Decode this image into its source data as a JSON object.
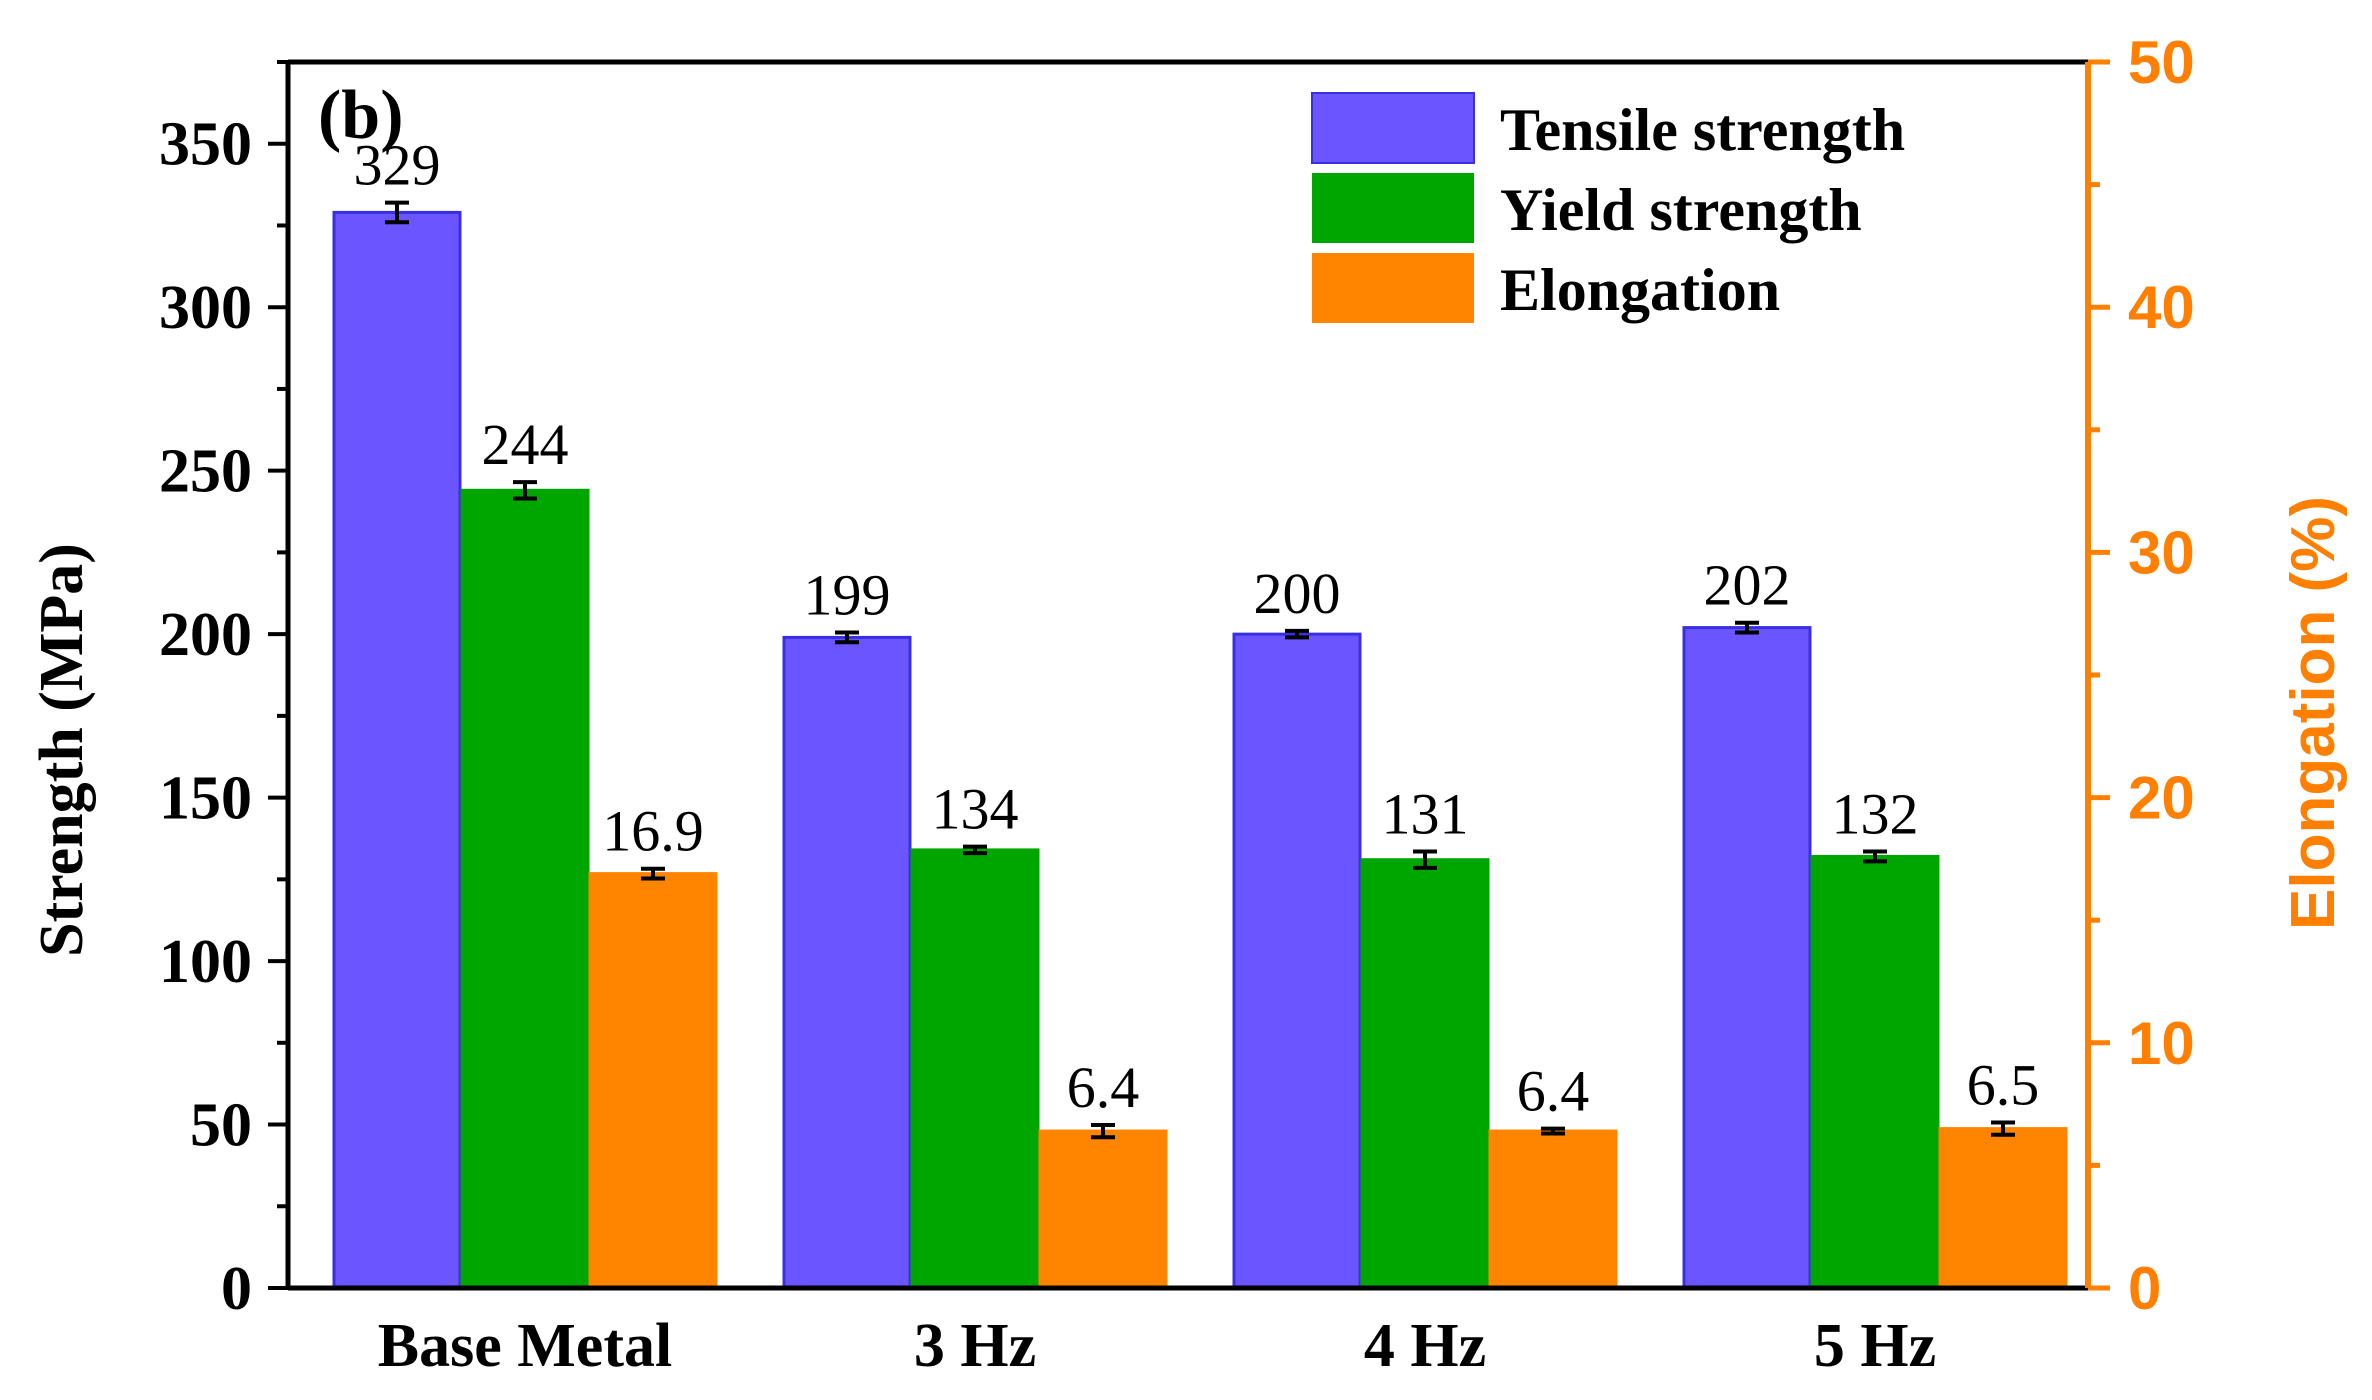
{
  "chart_data": {
    "type": "bar",
    "panel_label": "(b)",
    "categories": [
      "Base Metal",
      "3 Hz",
      "4 Hz",
      "5 Hz"
    ],
    "series": [
      {
        "name": "Tensile strength",
        "axis": "left",
        "color": "#6a55ff",
        "edge": "#3a2fe0",
        "values": [
          329,
          199,
          200,
          202
        ],
        "errors": [
          3,
          1.5,
          1,
          1.5
        ],
        "labels": [
          "329",
          "199",
          "200",
          "202"
        ]
      },
      {
        "name": "Yield strength",
        "axis": "left",
        "color": "#00a600",
        "edge": "#00a600",
        "values": [
          244,
          134,
          131,
          132
        ],
        "errors": [
          2.5,
          1,
          2.5,
          1.5
        ],
        "labels": [
          "244",
          "134",
          "131",
          "132"
        ]
      },
      {
        "name": "Elongation",
        "axis": "right",
        "color": "#ff8500",
        "edge": "#ff8500",
        "values": [
          16.9,
          6.4,
          6.4,
          6.5
        ],
        "errors": [
          0.2,
          0.25,
          0.1,
          0.25
        ],
        "labels": [
          "16.9",
          "6.4",
          "6.4",
          "6.5"
        ]
      }
    ],
    "y_left": {
      "label": "Strength (MPa)",
      "min": 0,
      "max": 375,
      "ticks": [
        0,
        50,
        100,
        150,
        200,
        250,
        300,
        350
      ],
      "tick_labels": [
        "0",
        "50",
        "100",
        "150",
        "200",
        "250",
        "300",
        "350"
      ]
    },
    "y_right": {
      "label": "Elongation (%)",
      "min": 0,
      "max": 50,
      "ticks": [
        0,
        10,
        20,
        30,
        40,
        50
      ],
      "tick_labels": [
        "0",
        "10",
        "20",
        "30",
        "40",
        "50"
      ],
      "color": "#ff7f00"
    },
    "legend": {
      "position": "top-right",
      "entries": [
        "Tensile strength",
        "Yield strength",
        "Elongation"
      ]
    }
  }
}
